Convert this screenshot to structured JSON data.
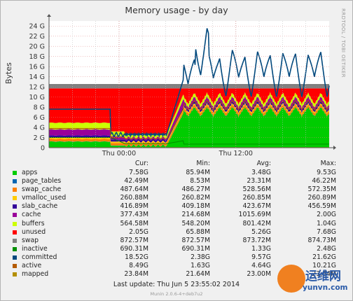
{
  "chart_data": {
    "type": "area",
    "title": "Memory usage - by day",
    "ylabel": "Bytes",
    "vendor_text": "RRDTOOL / TOBI OETIKER",
    "ylim": [
      0,
      25
    ],
    "y_unit": "G",
    "y_ticks": [
      "0",
      "2 G",
      "4 G",
      "6 G",
      "8 G",
      "10 G",
      "12 G",
      "14 G",
      "16 G",
      "18 G",
      "20 G",
      "22 G",
      "24 G"
    ],
    "x_ticks": [
      {
        "label": "Thu 00:00",
        "pos": 0.25
      },
      {
        "label": "Thu 12:00",
        "pos": 0.667
      }
    ],
    "columns": [
      "Cur:",
      "Min:",
      "Avg:",
      "Max:"
    ],
    "series": [
      {
        "name": "apps",
        "color": "#00cc00",
        "cur": "7.58G",
        "min": "85.94M",
        "avg": "3.48G",
        "max": "9.53G"
      },
      {
        "name": "page_tables",
        "color": "#0066b3",
        "cur": "42.49M",
        "min": "8.53M",
        "avg": "23.31M",
        "max": "46.22M"
      },
      {
        "name": "swap_cache",
        "color": "#ff8000",
        "cur": "487.64M",
        "min": "486.27M",
        "avg": "528.56M",
        "max": "572.35M"
      },
      {
        "name": "vmalloc_used",
        "color": "#ffcc00",
        "cur": "260.88M",
        "min": "260.82M",
        "avg": "260.85M",
        "max": "260.89M"
      },
      {
        "name": "slab_cache",
        "color": "#330099",
        "cur": "416.89M",
        "min": "409.18M",
        "avg": "423.67M",
        "max": "456.59M"
      },
      {
        "name": "cache",
        "color": "#990099",
        "cur": "377.43M",
        "min": "214.68M",
        "avg": "1015.69M",
        "max": "2.00G"
      },
      {
        "name": "buffers",
        "color": "#ccff00",
        "cur": "564.58M",
        "min": "548.20M",
        "avg": "801.42M",
        "max": "1.04G"
      },
      {
        "name": "unused",
        "color": "#ff0000",
        "cur": "2.05G",
        "min": "65.88M",
        "avg": "5.26G",
        "max": "7.68G"
      },
      {
        "name": "swap",
        "color": "#808080",
        "cur": "872.57M",
        "min": "872.57M",
        "avg": "873.72M",
        "max": "874.73M"
      },
      {
        "name": "inactive",
        "color": "#008f00",
        "cur": "690.31M",
        "min": "690.31M",
        "avg": "1.33G",
        "max": "2.48G"
      },
      {
        "name": "committed",
        "color": "#00487d",
        "cur": "18.52G",
        "min": "2.38G",
        "avg": "9.57G",
        "max": "21.62G"
      },
      {
        "name": "active",
        "color": "#b35a00",
        "cur": "8.49G",
        "min": "1.63G",
        "avg": "4.64G",
        "max": "10.21G"
      },
      {
        "name": "mapped",
        "color": "#b38f00",
        "cur": "23.84M",
        "min": "21.64M",
        "avg": "23.00M",
        "max": "23.84M"
      }
    ]
  },
  "last_update": "Last update:  Thu Jun  5 23:55:02 2014",
  "footer": "Munin 2.0.6-4+deb7u2",
  "watermark": {
    "line1": "运维网",
    "line2": "yunvn.com"
  }
}
